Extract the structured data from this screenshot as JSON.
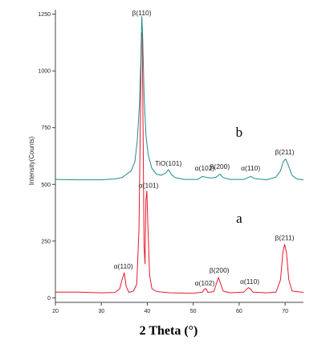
{
  "chart_data": {
    "type": "line",
    "xlabel": "2 Theta (°)",
    "ylabel": "Intensity(Counts)",
    "xlim": [
      20,
      74
    ],
    "ylim": [
      -20,
      1270
    ],
    "x_ticks": [
      20,
      30,
      40,
      50,
      60,
      70
    ],
    "y_ticks": [
      0,
      250,
      500,
      750,
      1000,
      1250
    ],
    "grid": false,
    "colors": {
      "series_a": "#e8192c",
      "series_b": "#1e8c8c",
      "axis": "#444444"
    },
    "series": [
      {
        "label": "a",
        "color": "#e8192c",
        "points": [
          [
            20,
            25
          ],
          [
            25,
            25
          ],
          [
            30,
            22
          ],
          [
            33,
            24
          ],
          [
            34,
            40
          ],
          [
            34.5,
            80
          ],
          [
            35,
            110
          ],
          [
            35.4,
            50
          ],
          [
            36,
            24
          ],
          [
            37,
            30
          ],
          [
            37.7,
            60
          ],
          [
            38.2,
            300
          ],
          [
            38.5,
            800
          ],
          [
            38.7,
            1150
          ],
          [
            38.9,
            1170
          ],
          [
            39.1,
            700
          ],
          [
            39.3,
            230
          ],
          [
            39.5,
            150
          ],
          [
            39.7,
            430
          ],
          [
            39.9,
            470
          ],
          [
            40.1,
            340
          ],
          [
            40.5,
            100
          ],
          [
            41,
            40
          ],
          [
            42,
            28
          ],
          [
            45,
            22
          ],
          [
            50,
            20
          ],
          [
            52,
            25
          ],
          [
            52.5,
            40
          ],
          [
            52.8,
            40
          ],
          [
            53.2,
            24
          ],
          [
            54.5,
            28
          ],
          [
            55,
            60
          ],
          [
            55.5,
            90
          ],
          [
            56,
            60
          ],
          [
            56.5,
            30
          ],
          [
            58,
            22
          ],
          [
            61,
            25
          ],
          [
            62,
            45
          ],
          [
            62.5,
            38
          ],
          [
            63,
            25
          ],
          [
            66,
            22
          ],
          [
            68,
            25
          ],
          [
            69,
            80
          ],
          [
            69.5,
            200
          ],
          [
            69.9,
            235
          ],
          [
            70.3,
            200
          ],
          [
            70.8,
            80
          ],
          [
            71.5,
            30
          ],
          [
            74,
            24
          ]
        ]
      },
      {
        "label": "b",
        "color": "#1e8c8c",
        "points": [
          [
            20,
            522
          ],
          [
            25,
            520
          ],
          [
            30,
            520
          ],
          [
            33,
            524
          ],
          [
            34.5,
            530
          ],
          [
            35.5,
            545
          ],
          [
            36.5,
            560
          ],
          [
            37.3,
            600
          ],
          [
            37.8,
            690
          ],
          [
            38.3,
            850
          ],
          [
            38.6,
            1050
          ],
          [
            38.8,
            1240
          ],
          [
            39.0,
            1150
          ],
          [
            39.3,
            900
          ],
          [
            39.7,
            720
          ],
          [
            40.2,
            630
          ],
          [
            41,
            570
          ],
          [
            42,
            545
          ],
          [
            43,
            540
          ],
          [
            44,
            550
          ],
          [
            44.6,
            565
          ],
          [
            45.2,
            545
          ],
          [
            46,
            530
          ],
          [
            48,
            522
          ],
          [
            51,
            522
          ],
          [
            52,
            535
          ],
          [
            53,
            530
          ],
          [
            54,
            528
          ],
          [
            55,
            532
          ],
          [
            55.8,
            545
          ],
          [
            56.5,
            530
          ],
          [
            58,
            522
          ],
          [
            61,
            522
          ],
          [
            62.5,
            535
          ],
          [
            63.5,
            525
          ],
          [
            66,
            520
          ],
          [
            68,
            532
          ],
          [
            69,
            560
          ],
          [
            69.6,
            600
          ],
          [
            70.1,
            612
          ],
          [
            70.6,
            590
          ],
          [
            71.5,
            540
          ],
          [
            72.5,
            524
          ],
          [
            74,
            520
          ]
        ]
      }
    ],
    "curve_labels": [
      {
        "text": "a",
        "x": 60,
        "y": 330
      },
      {
        "text": "b",
        "x": 60,
        "y": 710
      }
    ],
    "annotations": [
      {
        "text": "β(110)",
        "x": 38.8,
        "y": 1245
      },
      {
        "text": "α(101)",
        "x": 40.3,
        "y": 485
      },
      {
        "text": "α(110)",
        "x": 34.8,
        "y": 128
      },
      {
        "text": "TiO(101)",
        "x": 44.6,
        "y": 582
      },
      {
        "text": "α(102)",
        "x": 52.5,
        "y": 562
      },
      {
        "text": "β(200)",
        "x": 55.8,
        "y": 568
      },
      {
        "text": "α(110)",
        "x": 62.5,
        "y": 562
      },
      {
        "text": "β(211)",
        "x": 69.9,
        "y": 632
      },
      {
        "text": "α(102)",
        "x": 52.5,
        "y": 55
      },
      {
        "text": "β(200)",
        "x": 55.7,
        "y": 112
      },
      {
        "text": "α(110)",
        "x": 62.3,
        "y": 62
      },
      {
        "text": "β(211)",
        "x": 69.9,
        "y": 255
      }
    ]
  }
}
